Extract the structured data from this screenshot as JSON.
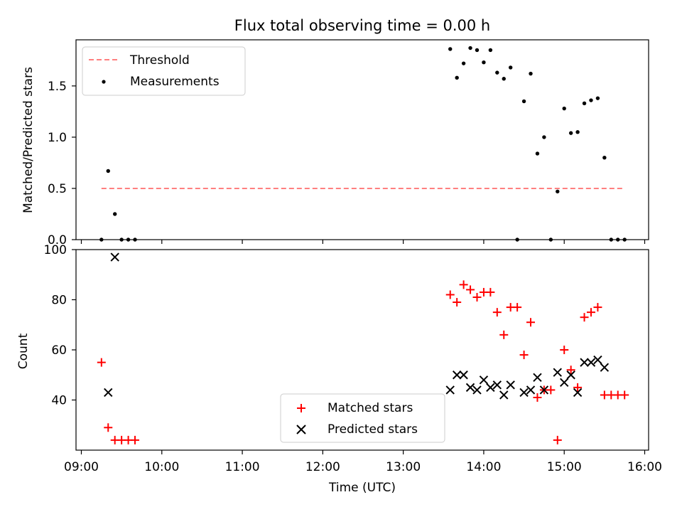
{
  "title": "Flux total observing time = 0.00 h",
  "chart_data": [
    {
      "type": "scatter",
      "ylabel": "Matched/Predicted stars",
      "xlim": [
        "09:00",
        "16:00"
      ],
      "ylim": [
        0,
        1.95
      ],
      "yticks": [
        0.0,
        0.5,
        1.0,
        1.5
      ],
      "ytick_labels": [
        "0.0",
        "0.5",
        "1.0",
        "1.5"
      ],
      "legend_position": "top-left",
      "legend": [
        "Threshold",
        "Measurements"
      ],
      "threshold": {
        "name": "Threshold",
        "value": 0.5,
        "x_start": "09:15",
        "x_end": "15:45",
        "color": "#ff7f7f",
        "style": "dashed"
      },
      "series": [
        {
          "name": "Measurements",
          "marker": "dot",
          "color": "#000000",
          "x": [
            "09:15",
            "09:20",
            "09:25",
            "09:30",
            "09:35",
            "09:40",
            "13:35",
            "13:40",
            "13:45",
            "13:50",
            "13:55",
            "14:00",
            "14:05",
            "14:10",
            "14:15",
            "14:20",
            "14:25",
            "14:30",
            "14:35",
            "14:40",
            "14:45",
            "14:50",
            "14:55",
            "15:00",
            "15:05",
            "15:10",
            "15:15",
            "15:20",
            "15:25",
            "15:30",
            "15:35",
            "15:40",
            "15:45"
          ],
          "y": [
            0.0,
            0.67,
            0.25,
            0.0,
            0.0,
            0.0,
            1.86,
            1.58,
            1.72,
            1.87,
            1.85,
            1.73,
            1.85,
            1.63,
            1.57,
            1.68,
            0.0,
            1.35,
            1.62,
            0.84,
            1.0,
            0.0,
            0.47,
            1.28,
            1.04,
            1.05,
            1.33,
            1.36,
            1.38,
            0.8,
            0.0,
            0.0,
            0.0
          ]
        }
      ]
    },
    {
      "type": "scatter",
      "xlabel": "Time (UTC)",
      "ylabel": "Count",
      "xlim": [
        "09:00",
        "16:00"
      ],
      "xticks": [
        "09:00",
        "10:00",
        "11:00",
        "12:00",
        "13:00",
        "14:00",
        "15:00",
        "16:00"
      ],
      "ylim": [
        20,
        100
      ],
      "yticks": [
        40,
        60,
        80,
        100
      ],
      "ytick_labels": [
        "40",
        "60",
        "80",
        "100"
      ],
      "legend_position": "lower-center",
      "legend": [
        "Matched stars",
        "Predicted stars"
      ],
      "series": [
        {
          "name": "Matched stars",
          "marker": "plus",
          "color": "#ff0000",
          "x": [
            "09:15",
            "09:20",
            "09:25",
            "09:30",
            "09:35",
            "09:40",
            "13:35",
            "13:40",
            "13:45",
            "13:50",
            "13:55",
            "14:00",
            "14:05",
            "14:10",
            "14:15",
            "14:20",
            "14:25",
            "14:30",
            "14:35",
            "14:40",
            "14:45",
            "14:50",
            "14:55",
            "15:00",
            "15:05",
            "15:10",
            "15:15",
            "15:20",
            "15:25",
            "15:30",
            "15:35",
            "15:40",
            "15:45"
          ],
          "y": [
            55,
            29,
            24,
            24,
            24,
            24,
            82,
            79,
            86,
            84,
            81,
            83,
            83,
            75,
            66,
            77,
            77,
            58,
            71,
            41,
            44,
            44,
            24,
            60,
            52,
            45,
            73,
            75,
            77,
            42,
            42,
            42,
            42
          ]
        },
        {
          "name": "Predicted stars",
          "marker": "x",
          "color": "#000000",
          "x": [
            "09:20",
            "09:25",
            "13:35",
            "13:40",
            "13:45",
            "13:50",
            "13:55",
            "14:00",
            "14:05",
            "14:10",
            "14:15",
            "14:20",
            "14:30",
            "14:35",
            "14:40",
            "14:45",
            "14:55",
            "15:00",
            "15:05",
            "15:10",
            "15:15",
            "15:20",
            "15:25",
            "15:30"
          ],
          "y": [
            43,
            97,
            44,
            50,
            50,
            45,
            44,
            48,
            45,
            46,
            42,
            46,
            43,
            44,
            49,
            44,
            51,
            47,
            50,
            43,
            55,
            55,
            56,
            53
          ]
        }
      ]
    }
  ]
}
